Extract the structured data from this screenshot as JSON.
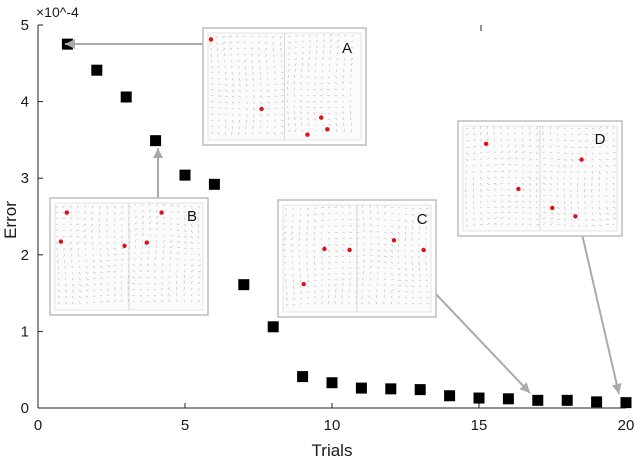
{
  "chart_data": {
    "type": "scatter",
    "xlabel": "Trials",
    "ylabel": "Error",
    "y_exponent": "×10^-4",
    "xlim": [
      0,
      20
    ],
    "ylim": [
      0,
      5
    ],
    "xticks": [
      "0",
      "5",
      "10",
      "15",
      "20"
    ],
    "yticks": [
      "0",
      "1",
      "2",
      "3",
      "4",
      "5"
    ],
    "x": [
      1,
      2,
      3,
      4,
      5,
      6,
      7,
      8,
      9,
      10,
      11,
      12,
      13,
      14,
      15,
      16,
      17,
      18,
      19,
      20
    ],
    "y": [
      4.75,
      4.41,
      4.06,
      3.49,
      3.04,
      2.92,
      1.61,
      1.06,
      0.41,
      0.33,
      0.26,
      0.25,
      0.24,
      0.16,
      0.13,
      0.12,
      0.1,
      0.1,
      0.08,
      0.07
    ],
    "marker_color": "#000000",
    "grid": false,
    "insets": [
      {
        "label": "A",
        "points_to_trial": 1
      },
      {
        "label": "B",
        "points_to_trial": 4
      },
      {
        "label": "C",
        "points_to_trial": 17
      },
      {
        "label": "D",
        "points_to_trial": 20
      }
    ],
    "arrow_color": "#aaaaaa",
    "particle_color": "#dd1111"
  }
}
